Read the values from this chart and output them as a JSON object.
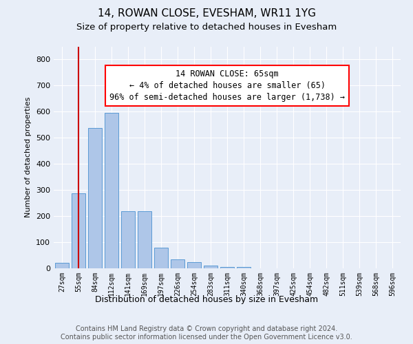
{
  "title1": "14, ROWAN CLOSE, EVESHAM, WR11 1YG",
  "title2": "Size of property relative to detached houses in Evesham",
  "xlabel": "Distribution of detached houses by size in Evesham",
  "ylabel": "Number of detached properties",
  "categories": [
    "27sqm",
    "55sqm",
    "84sqm",
    "112sqm",
    "141sqm",
    "169sqm",
    "197sqm",
    "226sqm",
    "254sqm",
    "283sqm",
    "311sqm",
    "340sqm",
    "368sqm",
    "397sqm",
    "425sqm",
    "454sqm",
    "482sqm",
    "511sqm",
    "539sqm",
    "568sqm",
    "596sqm"
  ],
  "values": [
    22,
    288,
    538,
    595,
    220,
    220,
    78,
    35,
    25,
    10,
    5,
    5,
    0,
    0,
    0,
    0,
    0,
    0,
    0,
    0,
    0
  ],
  "bar_color": "#aec6e8",
  "bar_edge_color": "#5a9bd5",
  "red_line_index": 1.0,
  "annotation_line1": "14 ROWAN CLOSE: 65sqm",
  "annotation_line2": "← 4% of detached houses are smaller (65)",
  "annotation_line3": "96% of semi-detached houses are larger (1,738) →",
  "red_line_color": "#cc0000",
  "ylim_max": 850,
  "yticks": [
    0,
    100,
    200,
    300,
    400,
    500,
    600,
    700,
    800
  ],
  "footer_line1": "Contains HM Land Registry data © Crown copyright and database right 2024.",
  "footer_line2": "Contains public sector information licensed under the Open Government Licence v3.0.",
  "bg_color": "#e8eef8",
  "grid_color": "#ffffff",
  "title1_fontsize": 11,
  "title2_fontsize": 9.5,
  "ylabel_fontsize": 8,
  "xlabel_fontsize": 9,
  "tick_fontsize": 7,
  "footer_fontsize": 7,
  "ann_fontsize": 8.5
}
